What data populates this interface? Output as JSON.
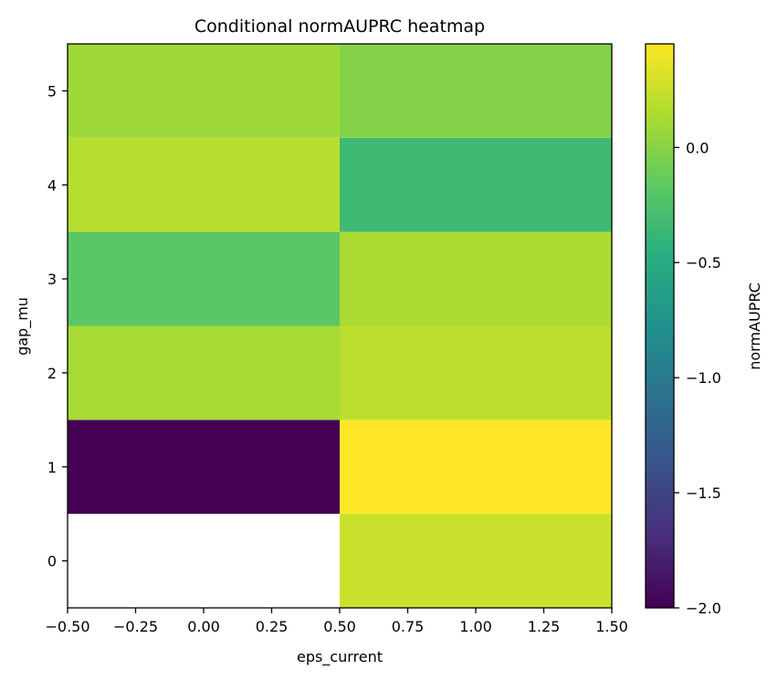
{
  "chart_data": {
    "type": "heatmap",
    "title": "Conditional normAUPRC heatmap",
    "xlabel": "eps_current",
    "ylabel": "gap_mu",
    "xlim": [
      -0.5,
      1.5
    ],
    "ylim": [
      -0.5,
      5.5
    ],
    "x_ticks": [
      "−0.50",
      "−0.25",
      "0.00",
      "0.25",
      "0.50",
      "0.75",
      "1.00",
      "1.25",
      "1.50"
    ],
    "y_ticks": [
      "0",
      "1",
      "2",
      "3",
      "4",
      "5"
    ],
    "x_values": [
      0,
      1
    ],
    "y_values": [
      0,
      1,
      2,
      3,
      4,
      5
    ],
    "z": [
      [
        null,
        0.25
      ],
      [
        -2.0,
        0.45
      ],
      [
        0.12,
        0.21
      ],
      [
        -0.19,
        0.14
      ],
      [
        0.18,
        -0.34
      ],
      [
        0.09,
        -0.01
      ]
    ],
    "colorbar": {
      "label": "normAUPRC",
      "colormap": "viridis",
      "vmin": -2.0,
      "vmax": 0.45,
      "ticks": [
        {
          "value": 0.0,
          "label": "0.0"
        },
        {
          "value": -0.5,
          "label": "−0.5"
        },
        {
          "value": -1.0,
          "label": "−1.0"
        },
        {
          "value": -1.5,
          "label": "−1.5"
        },
        {
          "value": -2.0,
          "label": "−2.0"
        }
      ]
    },
    "grid": false
  }
}
